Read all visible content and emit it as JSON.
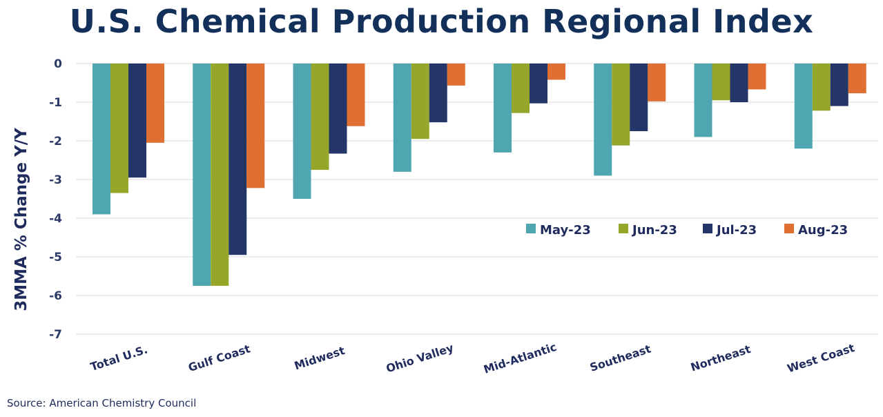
{
  "title": "U.S. Chemical Production Regional Index",
  "source": "Source:  American Chemistry Council",
  "chart_data": {
    "type": "bar",
    "title": "U.S. Chemical Production Regional Index",
    "xlabel": "",
    "ylabel": "3MMA % Change Y/Y",
    "ylim": [
      -7,
      0
    ],
    "yticks": [
      0,
      -1,
      -2,
      -3,
      -4,
      -5,
      -6,
      -7
    ],
    "grid": "horizontal",
    "legend_position": "right",
    "categories": [
      "Total U.S.",
      "Gulf Coast",
      "Midwest",
      "Ohio Valley",
      "Mid-Atlantic",
      "Southeast",
      "Northeast",
      "West Coast"
    ],
    "series": [
      {
        "name": "May-23",
        "color": "#4fa5b0",
        "values": [
          -3.9,
          -5.75,
          -3.5,
          -2.8,
          -2.3,
          -2.9,
          -1.9,
          -2.2
        ]
      },
      {
        "name": "Jun-23",
        "color": "#96a62b",
        "values": [
          -3.35,
          -5.75,
          -2.75,
          -1.95,
          -1.28,
          -2.12,
          -0.95,
          -1.22
        ]
      },
      {
        "name": "Jul-23",
        "color": "#243567",
        "values": [
          -2.95,
          -4.95,
          -2.33,
          -1.52,
          -1.03,
          -1.75,
          -1.0,
          -1.1
        ]
      },
      {
        "name": "Aug-23",
        "color": "#e06f33",
        "values": [
          -2.05,
          -3.22,
          -1.62,
          -0.57,
          -0.42,
          -0.98,
          -0.67,
          -0.77
        ]
      }
    ]
  }
}
